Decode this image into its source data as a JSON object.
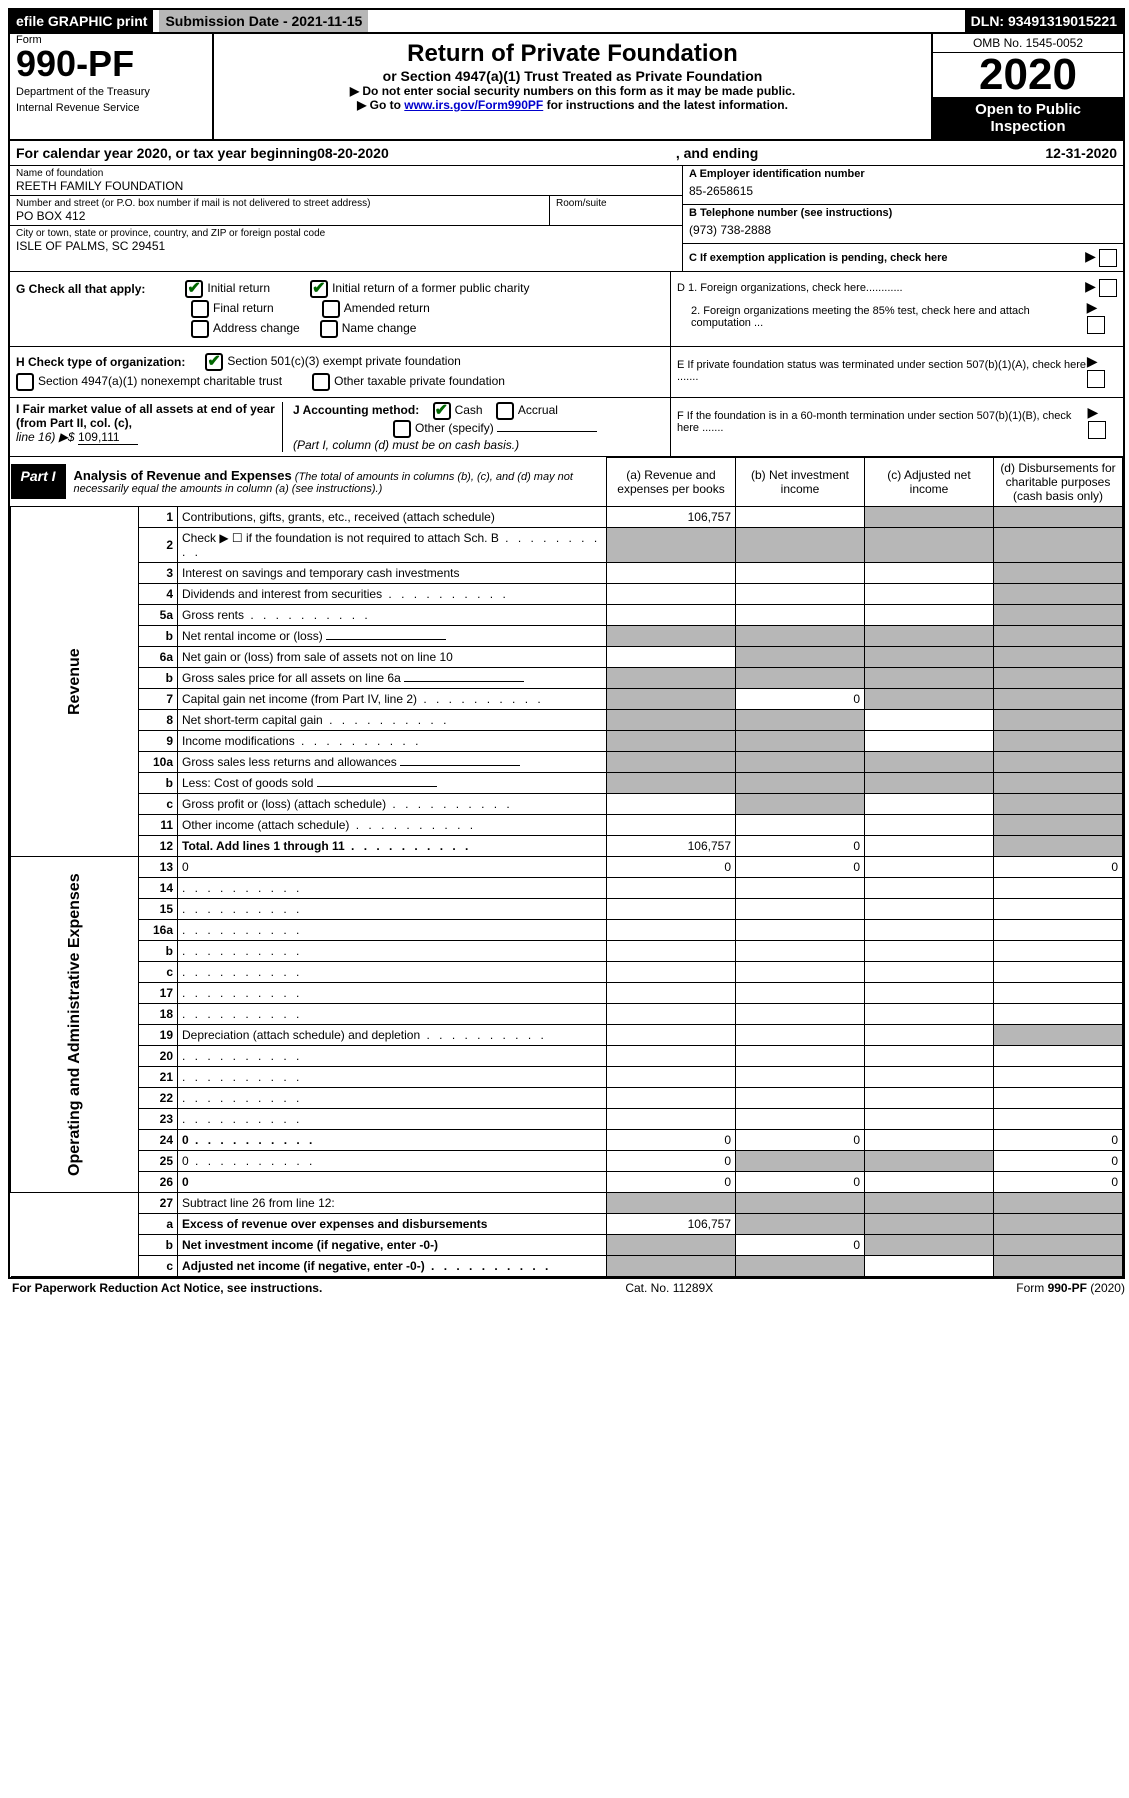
{
  "topbar": {
    "efile": "efile GRAPHIC print",
    "submission": "Submission Date - 2021-11-15",
    "dln": "DLN: 93491319015221"
  },
  "header": {
    "form_label": "Form",
    "form_no": "990-PF",
    "dept": "Department of the Treasury",
    "irs": "Internal Revenue Service",
    "title": "Return of Private Foundation",
    "subtitle": "or Section 4947(a)(1) Trust Treated as Private Foundation",
    "instr1": "▶ Do not enter social security numbers on this form as it may be made public.",
    "instr2_pre": "▶ Go to ",
    "instr2_link": "www.irs.gov/Form990PF",
    "instr2_post": " for instructions and the latest information.",
    "omb": "OMB No. 1545-0052",
    "year": "2020",
    "open": "Open to Public Inspection"
  },
  "calyear": {
    "pre": "For calendar year 2020, or tax year beginning ",
    "begin": "08-20-2020",
    "mid": " , and ending ",
    "end": "12-31-2020"
  },
  "entity": {
    "name_label": "Name of foundation",
    "name": "REETH FAMILY FOUNDATION",
    "addr_label": "Number and street (or P.O. box number if mail is not delivered to street address)",
    "addr": "PO BOX 412",
    "room_label": "Room/suite",
    "room": "",
    "city_label": "City or town, state or province, country, and ZIP or foreign postal code",
    "city": "ISLE OF PALMS, SC  29451",
    "ein_label": "A Employer identification number",
    "ein": "85-2658615",
    "phone_label": "B Telephone number (see instructions)",
    "phone": "(973) 738-2888",
    "c_label": "C If exemption application is pending, check here"
  },
  "checks": {
    "g_label": "G Check all that apply:",
    "initial": "Initial return",
    "initial_public": "Initial return of a former public charity",
    "final": "Final return",
    "amended": "Amended return",
    "address": "Address change",
    "name": "Name change",
    "h_label": "H Check type of organization:",
    "h_501c3": "Section 501(c)(3) exempt private foundation",
    "h_4947": "Section 4947(a)(1) nonexempt charitable trust",
    "h_other": "Other taxable private foundation",
    "i_label": "I Fair market value of all assets at end of year (from Part II, col. (c),",
    "i_line16": "line 16) ▶$",
    "i_value": "109,111",
    "j_label": "J Accounting method:",
    "j_cash": "Cash",
    "j_accrual": "Accrual",
    "j_other": "Other (specify)",
    "j_note": "(Part I, column (d) must be on cash basis.)",
    "d1": "D 1. Foreign organizations, check here............",
    "d2": "2. Foreign organizations meeting the 85% test, check here and attach computation ...",
    "e": "E  If private foundation status was terminated under section 507(b)(1)(A), check here .......",
    "f": "F  If the foundation is in a 60-month termination under section 507(b)(1)(B), check here .......",
    "arrow": "▶"
  },
  "part1": {
    "label": "Part I",
    "title": "Analysis of Revenue and Expenses",
    "title_note": " (The total of amounts in columns (b), (c), and (d) may not necessarily equal the amounts in column (a) (see instructions).)",
    "col_a": "(a)  Revenue and expenses per books",
    "col_b": "(b)  Net investment income",
    "col_c": "(c)  Adjusted net income",
    "col_d": "(d)  Disbursements for charitable purposes (cash basis only)"
  },
  "sections": {
    "revenue": "Revenue",
    "expenses": "Operating and Administrative Expenses"
  },
  "rows": [
    {
      "n": "1",
      "d": "Contributions, gifts, grants, etc., received (attach schedule)",
      "a": "106,757",
      "b": "",
      "c_sh": true,
      "d_sh": true
    },
    {
      "n": "2",
      "d": "Check ▶ ☐ if the foundation is not required to attach Sch. B",
      "a_sh": true,
      "b_sh": true,
      "c_sh": true,
      "d_sh": true,
      "dots": true
    },
    {
      "n": "3",
      "d": "Interest on savings and temporary cash investments",
      "a": "",
      "b": "",
      "c": "",
      "d_sh": true
    },
    {
      "n": "4",
      "d": "Dividends and interest from securities",
      "a": "",
      "b": "",
      "c": "",
      "d_sh": true,
      "dots": true
    },
    {
      "n": "5a",
      "d": "Gross rents",
      "a": "",
      "b": "",
      "c": "",
      "d_sh": true,
      "dots": true
    },
    {
      "n": "b",
      "d": "Net rental income or (loss)",
      "a_sh": true,
      "b_sh": true,
      "c_sh": true,
      "d_sh": true,
      "inline": true
    },
    {
      "n": "6a",
      "d": "Net gain or (loss) from sale of assets not on line 10",
      "a": "",
      "b_sh": true,
      "c_sh": true,
      "d_sh": true
    },
    {
      "n": "b",
      "d": "Gross sales price for all assets on line 6a",
      "a_sh": true,
      "b_sh": true,
      "c_sh": true,
      "d_sh": true,
      "inline": true
    },
    {
      "n": "7",
      "d": "Capital gain net income (from Part IV, line 2)",
      "a_sh": true,
      "b": "0",
      "c_sh": true,
      "d_sh": true,
      "dots": true
    },
    {
      "n": "8",
      "d": "Net short-term capital gain",
      "a_sh": true,
      "b_sh": true,
      "c": "",
      "d_sh": true,
      "dots": true
    },
    {
      "n": "9",
      "d": "Income modifications",
      "a_sh": true,
      "b_sh": true,
      "c": "",
      "d_sh": true,
      "dots": true
    },
    {
      "n": "10a",
      "d": "Gross sales less returns and allowances",
      "a_sh": true,
      "b_sh": true,
      "c_sh": true,
      "d_sh": true,
      "inline": true
    },
    {
      "n": "b",
      "d": "Less: Cost of goods sold",
      "a_sh": true,
      "b_sh": true,
      "c_sh": true,
      "d_sh": true,
      "inline": true,
      "dots": true
    },
    {
      "n": "c",
      "d": "Gross profit or (loss) (attach schedule)",
      "a": "",
      "b_sh": true,
      "c": "",
      "d_sh": true,
      "dots": true
    },
    {
      "n": "11",
      "d": "Other income (attach schedule)",
      "a": "",
      "b": "",
      "c": "",
      "d_sh": true,
      "dots": true
    },
    {
      "n": "12",
      "d": "Total. Add lines 1 through 11",
      "a": "106,757",
      "b": "0",
      "c": "",
      "d_sh": true,
      "bold": true,
      "dots": true
    },
    {
      "n": "13",
      "d": "0",
      "a": "0",
      "b": "0",
      "c": "",
      "sec": "exp"
    },
    {
      "n": "14",
      "d": "",
      "a": "",
      "b": "",
      "c": "",
      "sec": "exp",
      "dots": true
    },
    {
      "n": "15",
      "d": "",
      "a": "",
      "b": "",
      "c": "",
      "sec": "exp",
      "dots": true
    },
    {
      "n": "16a",
      "d": "",
      "a": "",
      "b": "",
      "c": "",
      "sec": "exp",
      "dots": true
    },
    {
      "n": "b",
      "d": "",
      "a": "",
      "b": "",
      "c": "",
      "sec": "exp",
      "dots": true
    },
    {
      "n": "c",
      "d": "",
      "a": "",
      "b": "",
      "c": "",
      "sec": "exp",
      "dots": true
    },
    {
      "n": "17",
      "d": "",
      "a": "",
      "b": "",
      "c": "",
      "sec": "exp",
      "dots": true
    },
    {
      "n": "18",
      "d": "",
      "a": "",
      "b": "",
      "c": "",
      "sec": "exp",
      "dots": true
    },
    {
      "n": "19",
      "d": "Depreciation (attach schedule) and depletion",
      "a": "",
      "b": "",
      "c": "",
      "d_sh": true,
      "sec": "exp",
      "dots": true
    },
    {
      "n": "20",
      "d": "",
      "a": "",
      "b": "",
      "c": "",
      "sec": "exp",
      "dots": true
    },
    {
      "n": "21",
      "d": "",
      "a": "",
      "b": "",
      "c": "",
      "sec": "exp",
      "dots": true
    },
    {
      "n": "22",
      "d": "",
      "a": "",
      "b": "",
      "c": "",
      "sec": "exp",
      "dots": true
    },
    {
      "n": "23",
      "d": "",
      "a": "",
      "b": "",
      "c": "",
      "sec": "exp",
      "dots": true
    },
    {
      "n": "24",
      "d": "0",
      "a": "0",
      "b": "0",
      "c": "",
      "sec": "exp",
      "bold": true,
      "dots": true
    },
    {
      "n": "25",
      "d": "0",
      "a": "0",
      "b_sh": true,
      "c_sh": true,
      "sec": "exp",
      "dots": true
    },
    {
      "n": "26",
      "d": "0",
      "a": "0",
      "b": "0",
      "c": "",
      "sec": "exp",
      "bold": true
    },
    {
      "n": "27",
      "d": "Subtract line 26 from line 12:",
      "a_sh": true,
      "b_sh": true,
      "c_sh": true,
      "d_sh": true,
      "sec": "none"
    },
    {
      "n": "a",
      "d": "Excess of revenue over expenses and disbursements",
      "a": "106,757",
      "b_sh": true,
      "c_sh": true,
      "d_sh": true,
      "sec": "none",
      "bold": true
    },
    {
      "n": "b",
      "d": "Net investment income (if negative, enter -0-)",
      "a_sh": true,
      "b": "0",
      "c_sh": true,
      "d_sh": true,
      "sec": "none",
      "bold": true
    },
    {
      "n": "c",
      "d": "Adjusted net income (if negative, enter -0-)",
      "a_sh": true,
      "b_sh": true,
      "c": "",
      "d_sh": true,
      "sec": "none",
      "bold": true,
      "dots": true
    }
  ],
  "footer": {
    "pra": "For Paperwork Reduction Act Notice, see instructions.",
    "cat": "Cat. No. 11289X",
    "form": "Form 990-PF (2020)"
  }
}
